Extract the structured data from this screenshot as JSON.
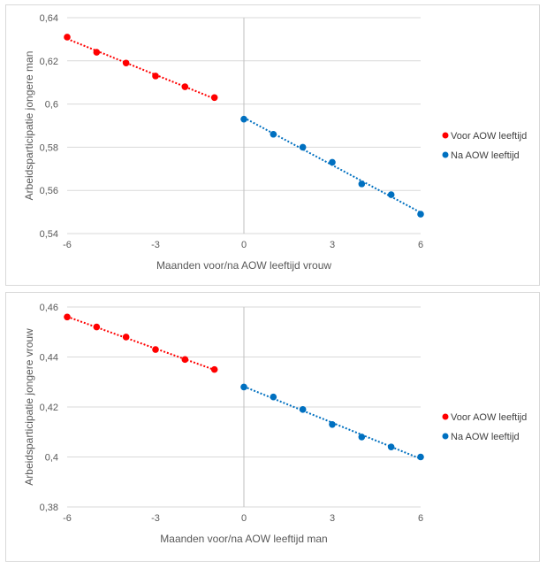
{
  "chart_data": [
    {
      "type": "scatter",
      "title": "",
      "xlabel": "Maanden voor/na AOW leeftijd vrouw",
      "ylabel": "Arbeidsparticipatie jongere man",
      "xlim": [
        -6,
        6
      ],
      "ylim": [
        0.54,
        0.64
      ],
      "xticks": [
        -6,
        -3,
        0,
        3,
        6
      ],
      "xtick_labels": [
        "-6",
        "-3",
        "0",
        "3",
        "6"
      ],
      "yticks": [
        0.54,
        0.56,
        0.58,
        0.6,
        0.62,
        0.64
      ],
      "ytick_labels": [
        "0,54",
        "0,56",
        "0,58",
        "0,6",
        "0,62",
        "0,64"
      ],
      "grid": "horizontal",
      "legend_position": "right",
      "series": [
        {
          "name": "Voor AOW leeftijd",
          "color": "#ff0000",
          "x": [
            -6,
            -5,
            -4,
            -3,
            -2,
            -1
          ],
          "values": [
            0.631,
            0.624,
            0.619,
            0.613,
            0.608,
            0.603
          ],
          "trendline": "dotted"
        },
        {
          "name": "Na AOW leeftijd",
          "color": "#0070c0",
          "x": [
            0,
            1,
            2,
            3,
            4,
            5,
            6
          ],
          "values": [
            0.593,
            0.586,
            0.58,
            0.573,
            0.563,
            0.558,
            0.549
          ],
          "trendline": "dotted"
        }
      ]
    },
    {
      "type": "scatter",
      "title": "",
      "xlabel": "Maanden voor/na AOW leeftijd man",
      "ylabel": "Arbeidsparticipatie jongere vrouw",
      "xlim": [
        -6,
        6
      ],
      "ylim": [
        0.38,
        0.46
      ],
      "xticks": [
        -6,
        -3,
        0,
        3,
        6
      ],
      "xtick_labels": [
        "-6",
        "-3",
        "0",
        "3",
        "6"
      ],
      "yticks": [
        0.38,
        0.4,
        0.42,
        0.44,
        0.46
      ],
      "ytick_labels": [
        "0,38",
        "0,4",
        "0,42",
        "0,44",
        "0,46"
      ],
      "grid": "horizontal",
      "legend_position": "right",
      "series": [
        {
          "name": "Voor AOW leeftijd",
          "color": "#ff0000",
          "x": [
            -6,
            -5,
            -4,
            -3,
            -2,
            -1
          ],
          "values": [
            0.456,
            0.452,
            0.448,
            0.443,
            0.439,
            0.435
          ],
          "trendline": "dotted"
        },
        {
          "name": "Na AOW leeftijd",
          "color": "#0070c0",
          "x": [
            0,
            1,
            2,
            3,
            4,
            5,
            6
          ],
          "values": [
            0.428,
            0.424,
            0.419,
            0.413,
            0.408,
            0.404,
            0.4
          ],
          "trendline": "dotted"
        }
      ]
    }
  ]
}
